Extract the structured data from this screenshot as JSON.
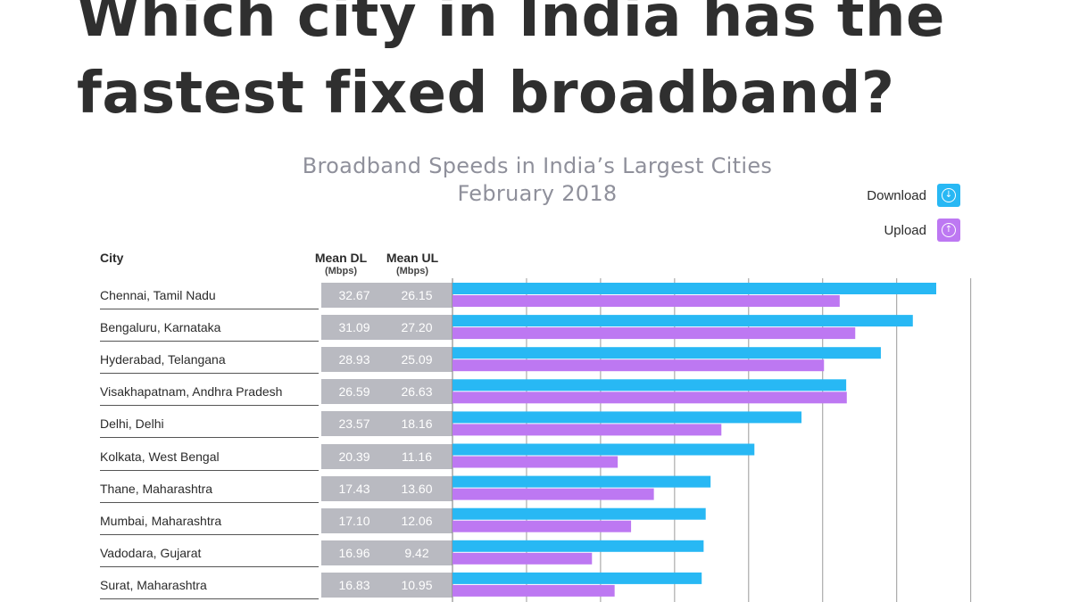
{
  "headline": [
    "Which city in India has the",
    "fastest fixed broadband?"
  ],
  "colors": {
    "download": "#28b8f4",
    "upload": "#bd78f2",
    "stat_box": "#b9bac1",
    "title_gray": "#8f909b"
  },
  "legend": {
    "download": {
      "label": "Download",
      "icon": "arrow-down-circle-icon"
    },
    "upload": {
      "label": "Upload",
      "icon": "arrow-up-circle-icon"
    }
  },
  "table": {
    "city_header": "City",
    "dl_header": "Mean DL",
    "dl_unit": "(Mbps)",
    "ul_header": "Mean UL",
    "ul_unit": "(Mbps)"
  },
  "chart_data": {
    "type": "bar",
    "orientation": "horizontal",
    "title": "Broadband Speeds in India’s Largest Cities",
    "subtitle": "February 2018",
    "categories": [
      "Chennai, Tamil Nadu",
      "Bengaluru, Karnataka",
      "Hyderabad, Telangana",
      "Visakhapatnam, Andhra Pradesh",
      "Delhi, Delhi",
      "Kolkata, West Bengal",
      "Thane, Maharashtra",
      "Mumbai, Maharashtra",
      "Vadodara, Gujarat",
      "Surat, Maharashtra"
    ],
    "series": [
      {
        "name": "Download",
        "values": [
          32.67,
          31.09,
          28.93,
          26.59,
          23.57,
          20.39,
          17.43,
          17.1,
          16.96,
          16.83
        ]
      },
      {
        "name": "Upload",
        "values": [
          26.15,
          27.2,
          25.09,
          26.63,
          18.16,
          11.16,
          13.6,
          12.06,
          9.42,
          10.95
        ]
      }
    ],
    "value_labels": {
      "download": [
        "32.67",
        "31.09",
        "28.93",
        "26.59",
        "23.57",
        "20.39",
        "17.43",
        "17.10",
        "16.96",
        "16.83"
      ],
      "upload": [
        "26.15",
        "27.20",
        "25.09",
        "26.63",
        "18.16",
        "11.16",
        "13.60",
        "12.06",
        "9.42",
        "10.95"
      ]
    },
    "xlim": [
      0,
      35
    ],
    "grid": true,
    "legend_position": "top-right"
  }
}
